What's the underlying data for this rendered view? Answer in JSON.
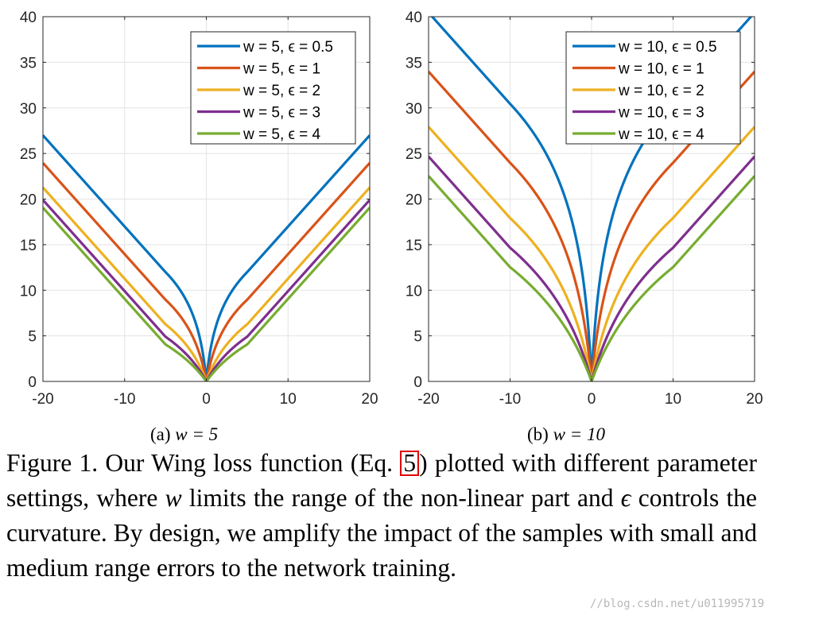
{
  "chart_data": [
    {
      "type": "line",
      "subcaption": "(a)",
      "subcaption_math": "w = 5",
      "xlim": [
        -20,
        20
      ],
      "ylim": [
        0,
        40
      ],
      "xticks": [
        -20,
        -10,
        0,
        10,
        20
      ],
      "yticks": [
        0,
        5,
        10,
        15,
        20,
        25,
        30,
        35,
        40
      ],
      "grid": true,
      "legend_position": "top-right",
      "w": 5,
      "series": [
        {
          "name": "w = 5, ϵ = 0.5",
          "w": 5,
          "epsilon": 0.5,
          "color": "#0072BD"
        },
        {
          "name": "w = 5, ϵ = 1",
          "w": 5,
          "epsilon": 1,
          "color": "#D95319"
        },
        {
          "name": "w = 5, ϵ = 2",
          "w": 5,
          "epsilon": 2,
          "color": "#EDB120"
        },
        {
          "name": "w = 5, ϵ = 3",
          "w": 5,
          "epsilon": 3,
          "color": "#7E2F8E"
        },
        {
          "name": "w = 5, ϵ = 4",
          "w": 5,
          "epsilon": 4,
          "color": "#77AC30"
        }
      ]
    },
    {
      "type": "line",
      "subcaption": "(b)",
      "subcaption_math": "w = 10",
      "xlim": [
        -20,
        20
      ],
      "ylim": [
        0,
        40
      ],
      "xticks": [
        -20,
        -10,
        0,
        10,
        20
      ],
      "yticks": [
        0,
        5,
        10,
        15,
        20,
        25,
        30,
        35,
        40
      ],
      "grid": true,
      "legend_position": "top-right",
      "w": 10,
      "series": [
        {
          "name": "w = 10, ϵ = 0.5",
          "w": 10,
          "epsilon": 0.5,
          "color": "#0072BD"
        },
        {
          "name": "w = 10, ϵ = 1",
          "w": 10,
          "epsilon": 1,
          "color": "#D95319"
        },
        {
          "name": "w = 10, ϵ = 2",
          "w": 10,
          "epsilon": 2,
          "color": "#EDB120"
        },
        {
          "name": "w = 10, ϵ = 3",
          "w": 10,
          "epsilon": 3,
          "color": "#7E2F8E"
        },
        {
          "name": "w = 10, ϵ = 4",
          "w": 10,
          "epsilon": 4,
          "color": "#77AC30"
        }
      ]
    }
  ],
  "caption": {
    "prefix": "Figure 1. Our Wing loss function (Eq. ",
    "ref": "5",
    "middle1": ") plotted with different parameter settings, where ",
    "w_symbol": "w",
    "middle2": " limits the range of the non-linear part and ",
    "eps_symbol": "ϵ",
    "suffix": " controls the curvature. By design, we amplify the impact of the samples with small and medium range errors to the network training."
  },
  "watermark": "//blog.csdn.net/u011995719"
}
